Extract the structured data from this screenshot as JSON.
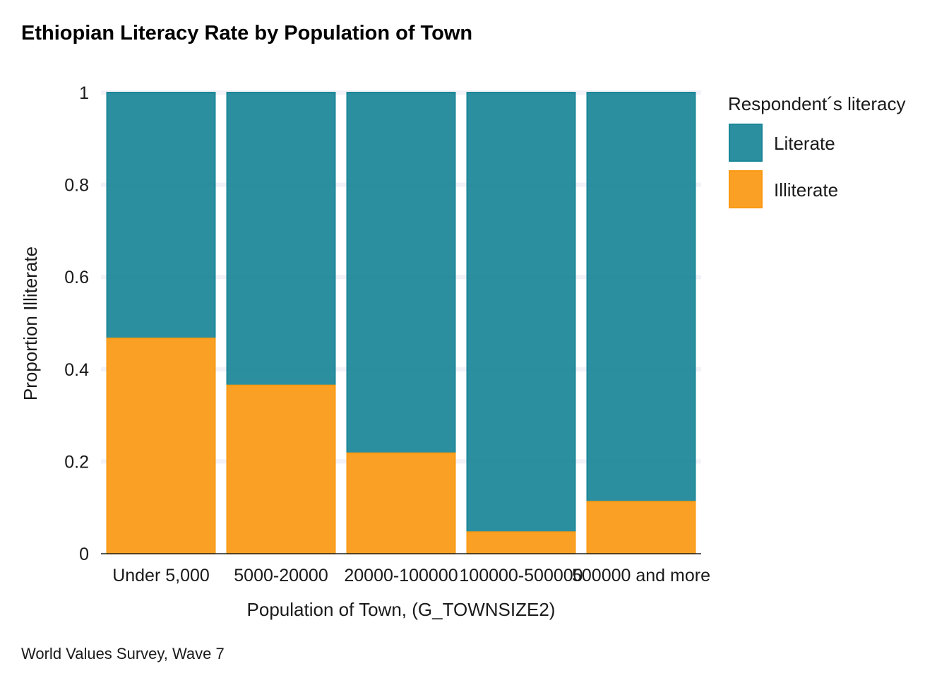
{
  "colors": {
    "literate": "#1b8798",
    "illiterate": "#fa9a14",
    "grid": "#f2f2f8",
    "baseline": "#222222"
  },
  "chart_data": {
    "type": "bar",
    "stacked": true,
    "title": "Ethiopian Literacy Rate by Population of Town",
    "xlabel": "Population of Town, (G_TOWNSIZE2)",
    "ylabel": "Proportion Illiterate",
    "caption": "World Values Survey,  Wave 7",
    "ylim": [
      0,
      1
    ],
    "yticks": [
      0,
      0.2,
      0.4,
      0.6,
      0.8,
      1
    ],
    "ytick_labels": [
      "0",
      "0.2",
      "0.4",
      "0.6",
      "0.8",
      "1"
    ],
    "grid": true,
    "legend_position": "right",
    "legend_title": "Respondent´s literacy",
    "categories": [
      "Under 5,000",
      "5000-20000",
      "20000-100000",
      "100000-500000",
      "500000 and more"
    ],
    "series": [
      {
        "name": "Literate",
        "values": [
          0.533,
          0.635,
          0.782,
          0.953,
          0.887
        ]
      },
      {
        "name": "Illiterate",
        "values": [
          0.467,
          0.365,
          0.218,
          0.047,
          0.113
        ]
      }
    ]
  }
}
